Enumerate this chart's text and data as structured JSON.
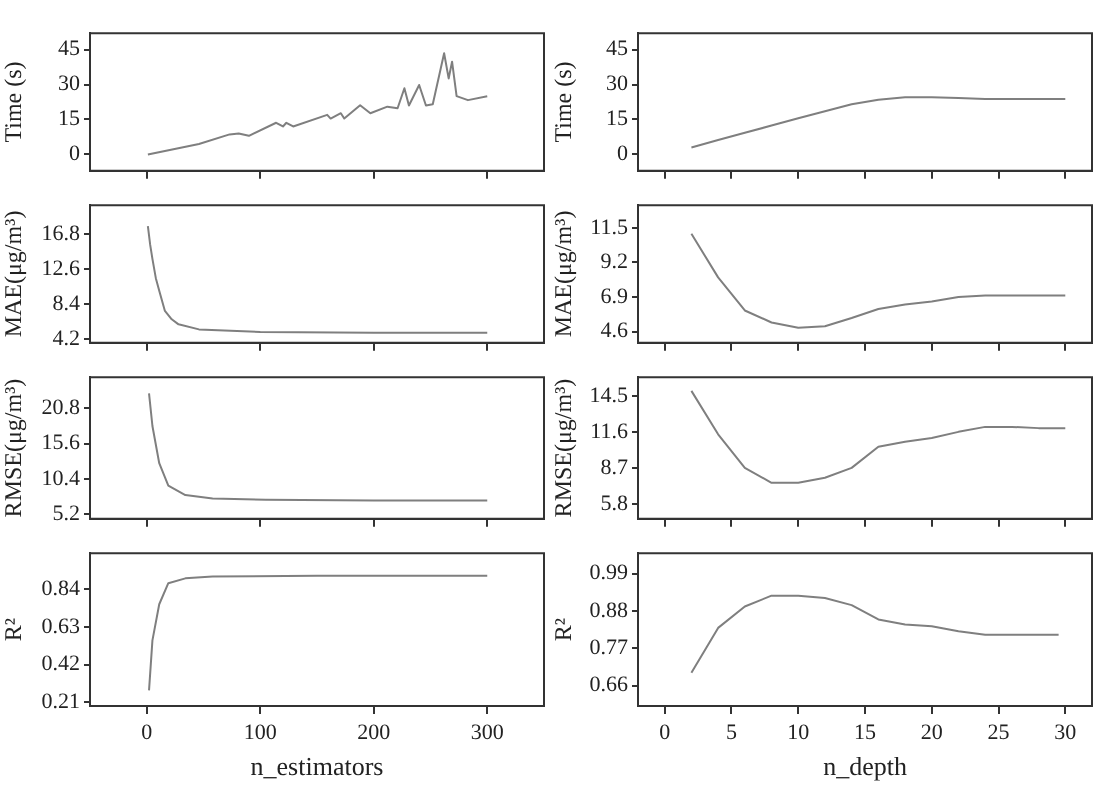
{
  "chart_data": [
    {
      "type": "line",
      "ylabel": "Time (s)",
      "color": "#7f7f7f",
      "marker": "none",
      "tick_labels": "y",
      "xlim": [
        -50,
        350
      ],
      "xticks": [
        0,
        100,
        200,
        300
      ],
      "ylim": [
        -7,
        52
      ],
      "yticks": [
        0,
        15,
        30,
        45
      ],
      "x": [
        1,
        46,
        73,
        81,
        90,
        114,
        120,
        123,
        129,
        159,
        162,
        171,
        174,
        188,
        197,
        212,
        221,
        227,
        231,
        240,
        246,
        252,
        262,
        266,
        269,
        273,
        283,
        300
      ],
      "values": [
        0,
        4.5,
        8.6,
        9,
        8,
        13.6,
        12,
        13.6,
        12,
        17,
        15.4,
        17.7,
        15.4,
        21.1,
        17.7,
        20.5,
        19.8,
        28.4,
        21,
        29.8,
        21,
        21.5,
        43.4,
        32.6,
        39.8,
        25,
        23.3,
        25
      ]
    },
    {
      "type": "line",
      "ylabel": "Time (s)",
      "color": "#7f7f7f",
      "marker": "none",
      "tick_labels": "y",
      "xlim": [
        -2,
        32
      ],
      "xticks": [
        0,
        5,
        10,
        15,
        20,
        25,
        30
      ],
      "ylim": [
        -7,
        52
      ],
      "yticks": [
        0,
        15,
        30,
        45
      ],
      "x": [
        2,
        4,
        6,
        8,
        10,
        12,
        14,
        16,
        18,
        20,
        22,
        24,
        26,
        28,
        30
      ],
      "values": [
        3,
        6.2,
        9.3,
        12.4,
        15.5,
        18.5,
        21.5,
        23.5,
        24.5,
        24.5,
        24.2,
        23.8,
        23.8,
        23.8,
        23.8
      ]
    },
    {
      "type": "line",
      "ylabel": "MAE(μg/m³)",
      "color": "#7f7f7f",
      "marker": "none",
      "tick_labels": "y",
      "xlim": [
        -50,
        350
      ],
      "xticks": [
        0,
        100,
        200,
        300
      ],
      "ylim": [
        3.8,
        20.2
      ],
      "yticks": [
        4.2,
        8.4,
        12.6,
        16.8
      ],
      "x": [
        1,
        3,
        5,
        8,
        11,
        16,
        22,
        28,
        46,
        100,
        200,
        300
      ],
      "values": [
        17.7,
        15.5,
        13.8,
        11.5,
        10,
        7.6,
        6.6,
        6,
        5.4,
        5.1,
        5,
        5
      ]
    },
    {
      "type": "line",
      "ylabel": "MAE(μg/m³)",
      "color": "#7f7f7f",
      "marker": "none",
      "tick_labels": "y",
      "xlim": [
        -2,
        32
      ],
      "xticks": [
        0,
        5,
        10,
        15,
        20,
        25,
        30
      ],
      "ylim": [
        3.85,
        13
      ],
      "yticks": [
        4.6,
        6.9,
        9.2,
        11.5
      ],
      "x": [
        2,
        4,
        6,
        8,
        10,
        12,
        14,
        16,
        18,
        20,
        22,
        24,
        26,
        28,
        30
      ],
      "values": [
        11.1,
        8.2,
        6,
        5.2,
        4.85,
        4.95,
        5.5,
        6.1,
        6.4,
        6.6,
        6.9,
        7,
        7,
        7,
        7
      ]
    },
    {
      "type": "line",
      "ylabel": "RMSE(μg/m³)",
      "color": "#7f7f7f",
      "marker": "none",
      "tick_labels": "y",
      "xlim": [
        -50,
        350
      ],
      "xticks": [
        0,
        100,
        200,
        300
      ],
      "ylim": [
        4.5,
        25.4
      ],
      "yticks": [
        5.2,
        10.4,
        15.6,
        20.8
      ],
      "x": [
        2,
        5,
        11,
        19,
        34,
        58,
        105,
        200,
        300
      ],
      "values": [
        23,
        18.2,
        12.7,
        9.4,
        8,
        7.5,
        7.3,
        7.2,
        7.2
      ]
    },
    {
      "type": "line",
      "ylabel": "RMSE(μg/m³)",
      "color": "#7f7f7f",
      "marker": "none",
      "tick_labels": "y",
      "xlim": [
        -2,
        32
      ],
      "xticks": [
        0,
        5,
        10,
        15,
        20,
        25,
        30
      ],
      "ylim": [
        4.6,
        16
      ],
      "yticks": [
        5.8,
        8.7,
        11.6,
        14.5
      ],
      "x": [
        2,
        4,
        6,
        8,
        10,
        12,
        14,
        16,
        18,
        20,
        22,
        24,
        26,
        28,
        30
      ],
      "values": [
        14.9,
        11.4,
        8.7,
        7.5,
        7.5,
        7.9,
        8.7,
        10.4,
        10.8,
        11.1,
        11.6,
        12,
        12,
        11.9,
        11.9
      ]
    },
    {
      "type": "line",
      "ylabel": "R²",
      "xlabel": "n_estimators",
      "color": "#7f7f7f",
      "marker": "none",
      "xlim": [
        -50,
        350
      ],
      "xticks": [
        0,
        100,
        200,
        300
      ],
      "ylim": [
        0.19,
        1.04
      ],
      "yticks": [
        0.21,
        0.42,
        0.63,
        0.84
      ],
      "x": [
        2,
        5,
        11,
        19,
        34,
        58,
        150,
        300
      ],
      "values": [
        0.277,
        0.555,
        0.756,
        0.873,
        0.9,
        0.91,
        0.915,
        0.915
      ]
    },
    {
      "type": "line",
      "ylabel": "R²",
      "xlabel": "n_depth",
      "color": "#7f7f7f",
      "marker": "none",
      "xlim": [
        -2,
        32
      ],
      "xticks": [
        0,
        5,
        10,
        15,
        20,
        25,
        30
      ],
      "ylim": [
        0.6,
        1.05
      ],
      "yticks": [
        0.66,
        0.77,
        0.88,
        0.99
      ],
      "x": [
        2,
        4,
        6,
        8,
        10,
        12,
        14,
        16,
        18,
        20,
        22,
        24,
        26,
        28,
        29.5
      ],
      "values": [
        0.698,
        0.83,
        0.893,
        0.925,
        0.925,
        0.918,
        0.897,
        0.855,
        0.84,
        0.835,
        0.82,
        0.81,
        0.81,
        0.81,
        0.81
      ]
    }
  ]
}
